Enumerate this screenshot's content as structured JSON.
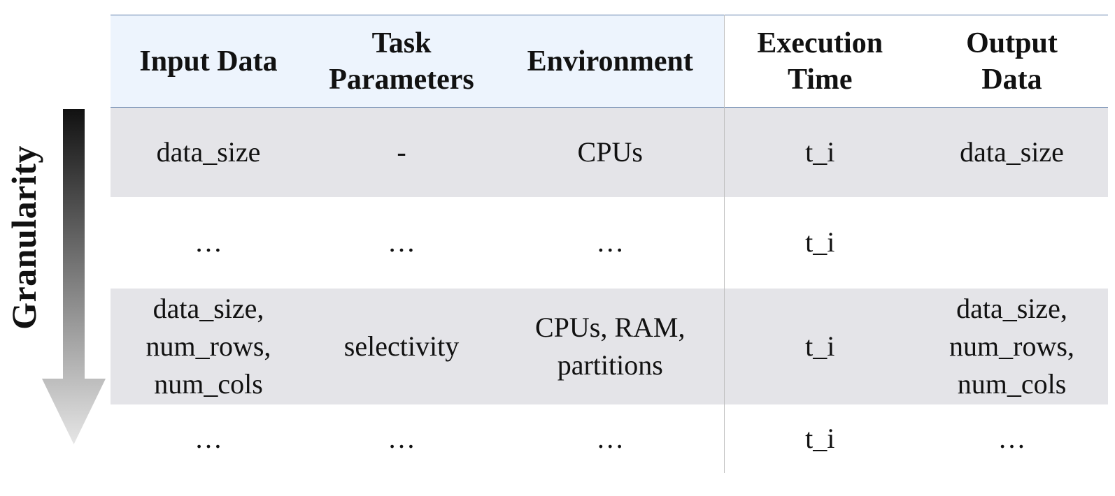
{
  "side_label": "Granularity",
  "columns": [
    {
      "lines": [
        "Input Data"
      ]
    },
    {
      "lines": [
        "Task",
        "Parameters"
      ]
    },
    {
      "lines": [
        "Environment"
      ]
    },
    {
      "lines": [
        "Execution",
        "Time"
      ]
    },
    {
      "lines": [
        "Output",
        "Data"
      ]
    }
  ],
  "rows": [
    {
      "cells": [
        {
          "lines": [
            "data_size"
          ]
        },
        {
          "lines": [
            "-"
          ]
        },
        {
          "lines": [
            "CPUs"
          ]
        },
        {
          "lines": [
            "t_i"
          ]
        },
        {
          "lines": [
            "data_size"
          ]
        }
      ]
    },
    {
      "cells": [
        {
          "lines": [
            "…"
          ]
        },
        {
          "lines": [
            "…"
          ]
        },
        {
          "lines": [
            "…"
          ]
        },
        {
          "lines": [
            "t_i"
          ]
        },
        {
          "lines": [
            ""
          ]
        }
      ]
    },
    {
      "cells": [
        {
          "lines": [
            "data_size,",
            "num_rows,",
            "num_cols"
          ]
        },
        {
          "lines": [
            "selectivity"
          ]
        },
        {
          "lines": [
            "CPUs, RAM,",
            "partitions"
          ]
        },
        {
          "lines": [
            "t_i"
          ]
        },
        {
          "lines": [
            "data_size,",
            "num_rows,",
            "num_cols"
          ]
        }
      ]
    },
    {
      "cells": [
        {
          "lines": [
            "…"
          ]
        },
        {
          "lines": [
            "…"
          ]
        },
        {
          "lines": [
            "…"
          ]
        },
        {
          "lines": [
            "t_i"
          ]
        },
        {
          "lines": [
            "…"
          ]
        }
      ]
    }
  ],
  "colors": {
    "header_shade": "#edf4fd",
    "header_rule": "#5b7ba8",
    "row_shade": "#e4e4e8",
    "divider": "#bfbfbf",
    "arrow_top": "#111111",
    "arrow_bottom": "#e6e6e6"
  }
}
